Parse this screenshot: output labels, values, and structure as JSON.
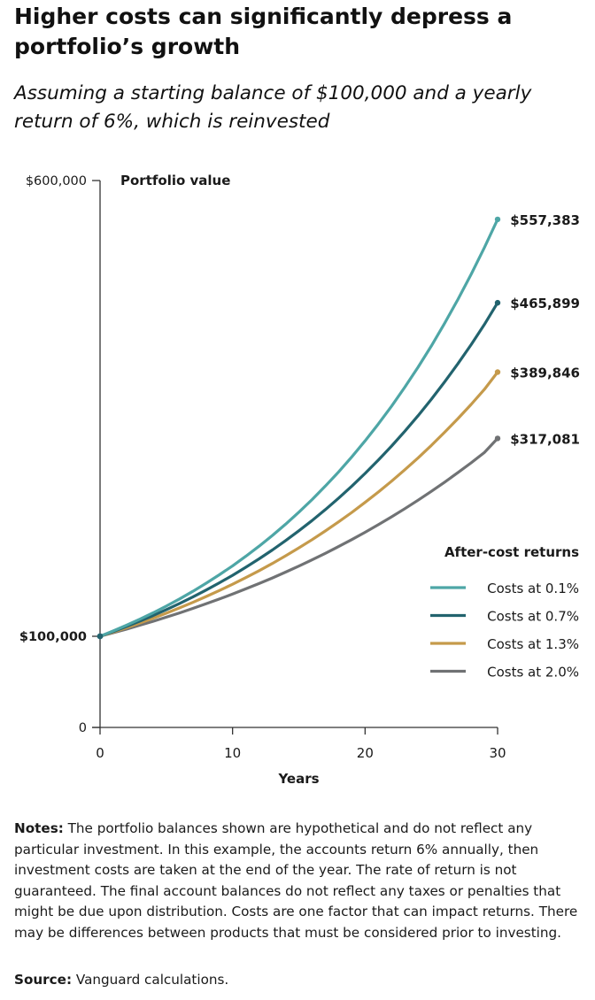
{
  "title": "Higher costs can significantly depress a portfolio’s growth",
  "subtitle": "Assuming a starting balance of $100,000 and a yearly return of 6%, which is reinvested",
  "chart_data": {
    "type": "line",
    "ylabel": "Portfolio value",
    "xlabel": "Years",
    "xlim": [
      0,
      30
    ],
    "ylim": [
      0,
      600000
    ],
    "x_ticks": [
      {
        "value": 0,
        "label": "0"
      },
      {
        "value": 10,
        "label": "10"
      },
      {
        "value": 20,
        "label": "20"
      },
      {
        "value": 30,
        "label": "30"
      }
    ],
    "y_ticks": [
      {
        "value": 600000,
        "label": "$600,000",
        "bold": false
      },
      {
        "value": 100000,
        "label": "$100,000",
        "bold": true
      },
      {
        "value": 0,
        "label": "0",
        "bold": false
      }
    ],
    "start_value": 100000,
    "annual_return": 0.06,
    "years": 30,
    "legend_title": "After-cost returns",
    "legend_position": "right",
    "grid": false,
    "series": [
      {
        "name": "Costs at 0.1%",
        "cost": 0.001,
        "color": "#4ea6a6",
        "end_value": 557383,
        "end_label": "$557,383"
      },
      {
        "name": "Costs at 0.7%",
        "cost": 0.007,
        "color": "#22636e",
        "end_value": 465899,
        "end_label": "$465,899"
      },
      {
        "name": "Costs at 1.3%",
        "cost": 0.013,
        "color": "#c59a4b",
        "end_value": 389846,
        "end_label": "$389,846"
      },
      {
        "name": "Costs at 2.0%",
        "cost": 0.02,
        "color": "#707274",
        "end_value": 317081,
        "end_label": "$317,081"
      }
    ]
  },
  "notes": {
    "label": "Notes:",
    "text": " The portfolio balances shown are hypothetical and do not reflect any particular investment. In this example, the accounts return 6% annually, then investment costs are taken at the end of the year. The rate of return is not guaranteed. The final account balances do not reflect any taxes or penalties that might be due upon distribution. Costs are one factor that can impact returns. There may be differences between products that must be considered prior to investing."
  },
  "source": {
    "label": "Source:",
    "text": " Vanguard calculations."
  },
  "colors": {
    "axis": "#333333",
    "text": "#1a1a1a"
  }
}
